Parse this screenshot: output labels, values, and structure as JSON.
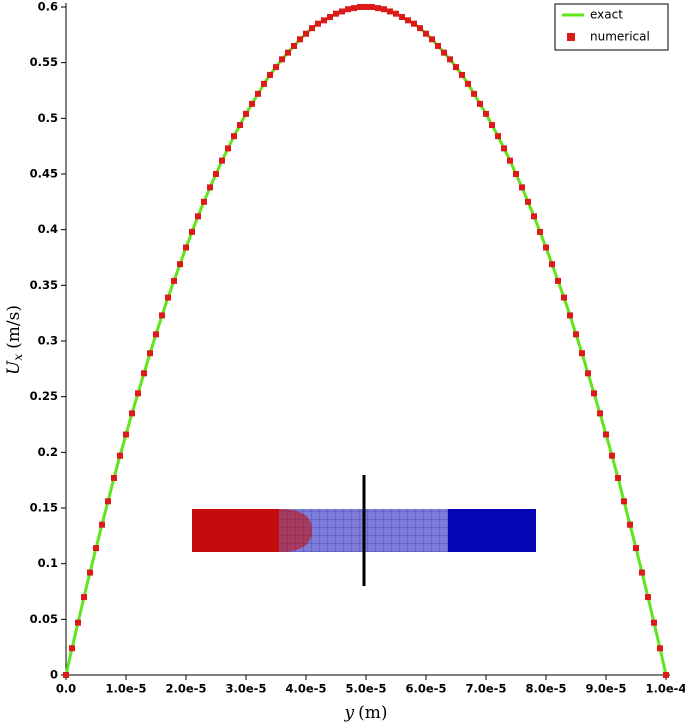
{
  "chart_data": {
    "type": "line",
    "ylabel": {
      "symbol": "U",
      "subscript": "x",
      "unit": "(m/s)"
    },
    "xlabel": {
      "symbol": "y",
      "unit": "(m)"
    },
    "x": [
      0,
      1e-06,
      2e-06,
      3e-06,
      4e-06,
      5e-06,
      6e-06,
      7e-06,
      8e-06,
      9e-06,
      1e-05,
      1.1e-05,
      1.2e-05,
      1.3e-05,
      1.4e-05,
      1.5e-05,
      1.6e-05,
      1.7e-05,
      1.8e-05,
      1.9e-05,
      2e-05,
      2.1e-05,
      2.2e-05,
      2.3e-05,
      2.4e-05,
      2.5e-05,
      2.6e-05,
      2.7e-05,
      2.8e-05,
      2.9e-05,
      3e-05,
      3.1e-05,
      3.2e-05,
      3.3e-05,
      3.4e-05,
      3.5e-05,
      3.6e-05,
      3.7e-05,
      3.8e-05,
      3.9e-05,
      4e-05,
      4.1e-05,
      4.2e-05,
      4.3e-05,
      4.4e-05,
      4.5e-05,
      4.6e-05,
      4.7e-05,
      4.8e-05,
      4.9e-05,
      5e-05,
      5.1e-05,
      5.2e-05,
      5.3e-05,
      5.4e-05,
      5.5e-05,
      5.6e-05,
      5.7e-05,
      5.8e-05,
      5.9e-05,
      6e-05,
      6.1e-05,
      6.2e-05,
      6.3e-05,
      6.4e-05,
      6.5e-05,
      6.6e-05,
      6.7e-05,
      6.8e-05,
      6.9e-05,
      7e-05,
      7.1e-05,
      7.2e-05,
      7.3e-05,
      7.4e-05,
      7.5e-05,
      7.6e-05,
      7.7e-05,
      7.8e-05,
      7.9e-05,
      8e-05,
      8.1e-05,
      8.2e-05,
      8.3e-05,
      8.4e-05,
      8.5e-05,
      8.6e-05,
      8.7e-05,
      8.8e-05,
      8.9e-05,
      9e-05,
      9.1e-05,
      9.2e-05,
      9.3e-05,
      9.4e-05,
      9.5e-05,
      9.6e-05,
      9.7e-05,
      9.8e-05,
      9.9e-05,
      0.0001
    ],
    "series": [
      {
        "name": "exact",
        "color": "#5fe61a",
        "style": "line",
        "values": [
          0,
          0.024,
          0.047,
          0.07,
          0.092,
          0.114,
          0.135,
          0.156,
          0.177,
          0.197,
          0.216,
          0.235,
          0.253,
          0.271,
          0.289,
          0.306,
          0.323,
          0.339,
          0.354,
          0.369,
          0.384,
          0.398,
          0.412,
          0.425,
          0.438,
          0.45,
          0.462,
          0.473,
          0.484,
          0.494,
          0.504,
          0.513,
          0.522,
          0.531,
          0.539,
          0.546,
          0.553,
          0.559,
          0.565,
          0.571,
          0.576,
          0.581,
          0.585,
          0.588,
          0.591,
          0.594,
          0.596,
          0.598,
          0.599,
          0.6,
          0.6,
          0.6,
          0.599,
          0.598,
          0.596,
          0.594,
          0.591,
          0.588,
          0.585,
          0.581,
          0.576,
          0.571,
          0.565,
          0.559,
          0.553,
          0.546,
          0.539,
          0.531,
          0.522,
          0.513,
          0.504,
          0.494,
          0.484,
          0.473,
          0.462,
          0.45,
          0.438,
          0.425,
          0.412,
          0.398,
          0.384,
          0.369,
          0.354,
          0.339,
          0.323,
          0.306,
          0.289,
          0.271,
          0.253,
          0.235,
          0.216,
          0.197,
          0.177,
          0.156,
          0.135,
          0.114,
          0.092,
          0.07,
          0.047,
          0.024,
          0
        ]
      },
      {
        "name": "numerical",
        "color": "#dd1a1a",
        "style": "marker",
        "values": [
          0,
          0.024,
          0.047,
          0.07,
          0.092,
          0.114,
          0.135,
          0.156,
          0.177,
          0.197,
          0.216,
          0.235,
          0.253,
          0.271,
          0.289,
          0.306,
          0.323,
          0.339,
          0.354,
          0.369,
          0.384,
          0.398,
          0.412,
          0.425,
          0.438,
          0.45,
          0.462,
          0.473,
          0.484,
          0.494,
          0.504,
          0.513,
          0.522,
          0.531,
          0.539,
          0.546,
          0.553,
          0.559,
          0.565,
          0.571,
          0.576,
          0.581,
          0.585,
          0.588,
          0.591,
          0.594,
          0.596,
          0.598,
          0.599,
          0.6,
          0.6,
          0.6,
          0.599,
          0.598,
          0.596,
          0.594,
          0.591,
          0.588,
          0.585,
          0.581,
          0.576,
          0.571,
          0.565,
          0.559,
          0.553,
          0.546,
          0.539,
          0.531,
          0.522,
          0.513,
          0.504,
          0.494,
          0.484,
          0.473,
          0.462,
          0.45,
          0.438,
          0.425,
          0.412,
          0.398,
          0.384,
          0.369,
          0.354,
          0.339,
          0.323,
          0.306,
          0.289,
          0.271,
          0.253,
          0.235,
          0.216,
          0.197,
          0.177,
          0.156,
          0.135,
          0.114,
          0.092,
          0.07,
          0.047,
          0.024,
          0
        ]
      }
    ],
    "xlim": [
      0,
      0.0001
    ],
    "ylim": [
      0,
      0.6
    ],
    "xticks": [
      {
        "value": 0,
        "label": "0.0"
      },
      {
        "value": 1e-05,
        "label": "1.0e-5"
      },
      {
        "value": 2e-05,
        "label": "2.0e-5"
      },
      {
        "value": 3e-05,
        "label": "3.0e-5"
      },
      {
        "value": 4e-05,
        "label": "4.0e-5"
      },
      {
        "value": 5e-05,
        "label": "5.0e-5"
      },
      {
        "value": 6e-05,
        "label": "6.0e-5"
      },
      {
        "value": 7e-05,
        "label": "7.0e-5"
      },
      {
        "value": 8e-05,
        "label": "8.0e-5"
      },
      {
        "value": 9e-05,
        "label": "9.0e-5"
      },
      {
        "value": 0.0001,
        "label": "1.0e-4"
      }
    ],
    "yticks": [
      0,
      0.05,
      0.1,
      0.15,
      0.2,
      0.25,
      0.3,
      0.35,
      0.4,
      0.45,
      0.5,
      0.55,
      0.6
    ],
    "grid": false,
    "legend": "top-right"
  }
}
